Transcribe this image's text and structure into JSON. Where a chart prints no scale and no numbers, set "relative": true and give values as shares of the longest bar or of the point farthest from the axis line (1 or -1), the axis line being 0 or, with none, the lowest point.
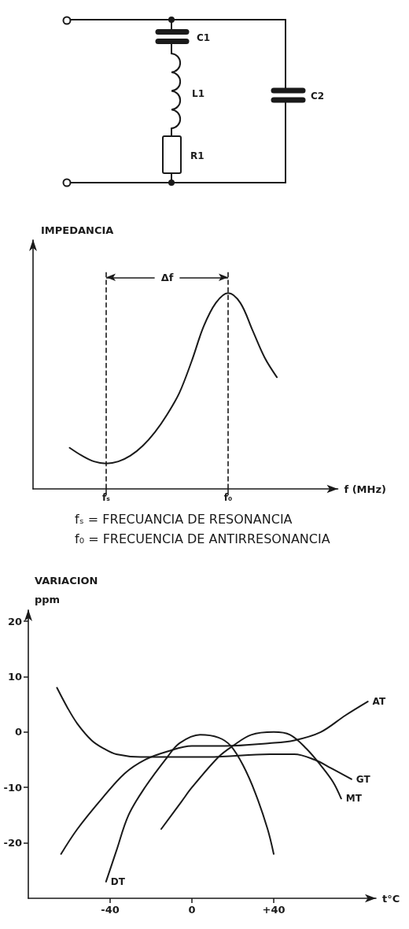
{
  "chart_data": [
    {
      "type": "other",
      "annotations": [
        "C1",
        "L1",
        "R1",
        "C2"
      ]
    },
    {
      "type": "line",
      "relative": true,
      "ylabel": "IMPEDANCIA",
      "xlabel": "f (MHz)",
      "categories": [
        null,
        null,
        null,
        null,
        null,
        null,
        "fₛ",
        null,
        null,
        null,
        null,
        null,
        null,
        null,
        null,
        null,
        "f₀",
        null,
        null,
        null,
        null,
        null,
        null,
        null,
        null,
        null
      ],
      "series": [
        {
          "color": "#1a1a1a",
          "values": [
            null,
            null,
            null,
            0.21,
            0.17,
            0.14,
            0.13,
            0.14,
            0.17,
            0.22,
            0.29,
            0.38,
            0.49,
            0.65,
            0.83,
            0.95,
            1,
            0.95,
            0.81,
            0.67,
            0.57,
            null,
            null,
            null,
            null,
            null
          ]
        }
      ],
      "ref_lines": [
        {
          "axis": "x",
          "value": "fₛ",
          "line_style": "dashed",
          "color": "#1a1a1a"
        },
        {
          "axis": "x",
          "value": "f₀",
          "line_style": "dashed",
          "color": "#1a1a1a"
        }
      ],
      "annotations": [
        "Δf",
        "fₛ = FRECUANCIA DE RESONANCIA",
        "f₀ = FRECUENCIA DE ANTIRRESONANCIA"
      ]
    },
    {
      "type": "line",
      "ylabel": "VARIACION\nppm",
      "xlabel": "t°C",
      "xlim": [
        -80,
        90
      ],
      "xticks": [
        -40,
        0,
        {
          "value": 40,
          "label": "+40"
        }
      ],
      "ylim": [
        -30,
        22
      ],
      "yticks": [
        -20,
        -10,
        0,
        10,
        20
      ],
      "series": [
        {
          "name": "AT",
          "color": "#1a1a1a",
          "x": [
            -64,
            -56,
            -44,
            -33,
            -23,
            -12,
            0,
            16,
            38,
            50,
            63,
            75,
            86
          ],
          "values": [
            -22,
            -17.5,
            -12,
            -7.5,
            -5,
            -3.5,
            -2.5,
            -2.5,
            -2,
            -1.5,
            0,
            3,
            5.5
          ]
        },
        {
          "name": "GT",
          "color": "#1a1a1a",
          "x": [
            -66,
            -61,
            -56,
            -49,
            -43,
            -37,
            -25,
            -10,
            8,
            38,
            50,
            60,
            68,
            78
          ],
          "values": [
            8,
            4.5,
            1.5,
            -1.5,
            -3,
            -4,
            -4.5,
            -4.5,
            -4.5,
            -4,
            -4,
            -5,
            -6.5,
            -8.5
          ]
        },
        {
          "name": "MT",
          "color": "#1a1a1a",
          "x": [
            -15,
            -5,
            0,
            13,
            20,
            29,
            40,
            48,
            56,
            63,
            69,
            73
          ],
          "values": [
            -17.5,
            -12.5,
            -10,
            -4.5,
            -2.5,
            -0.5,
            0,
            -0.5,
            -3,
            -6,
            -9,
            -12
          ]
        },
        {
          "name": "DT",
          "color": "#1a1a1a",
          "x": [
            -42,
            -37,
            -31,
            -23,
            -12,
            -6,
            4,
            13,
            19,
            25,
            31,
            37,
            40
          ],
          "values": [
            -27,
            -21.5,
            -15,
            -10,
            -4.5,
            -2,
            -0.5,
            -1,
            -2.5,
            -6,
            -11,
            -17.5,
            -22
          ]
        }
      ]
    }
  ]
}
